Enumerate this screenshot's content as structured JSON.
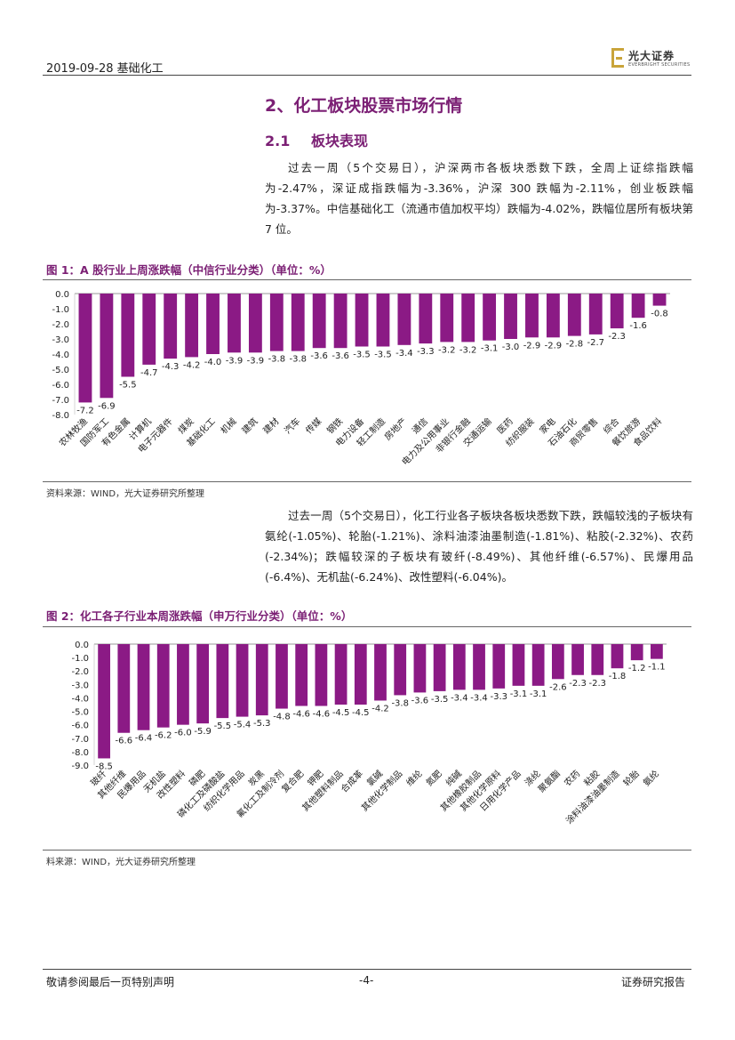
{
  "header": {
    "date_category": "2019-09-28    基础化工",
    "logo_name": "光大证券",
    "logo_sub": "EVERBRIGHT SECURITIES"
  },
  "section": {
    "title": "2、化工板块股票市场行情",
    "sub_num": "2.1",
    "sub_title": "板块表现"
  },
  "paragraph1": "过去一周（5个交易日），沪深两市各板块悉数下跌，全周上证综指跌幅为-2.47%，深证成指跌幅为-3.36%，沪深 300 跌幅为-2.11%，创业板跌幅为-3.37%。中信基础化工（流通市值加权平均）跌幅为-4.02%，跌幅位居所有板块第 7 位。",
  "figure1": {
    "title": "图 1：A 股行业上周涨跌幅（中信行业分类）（单位：%）",
    "source": "资料来源：WIND，光大证券研究所整理"
  },
  "paragraph2": "过去一周（5个交易日），化工行业各子板块各板块悉数下跌，跌幅较浅的子板块有氨纶(-1.05%)、轮胎(-1.21%)、涂料油漆油墨制造(-1.81%)、粘胶(-2.32%)、农药(-2.34%)；跌幅较深的子板块有玻纤(-8.49%)、其他纤维(-6.57%)、民爆用品(-6.4%)、无机盐(-6.24%)、改性塑料(-6.04%)。",
  "figure2": {
    "title": "图 2：化工各子行业本周涨跌幅（申万行业分类）（单位：%）",
    "source": "料来源：WIND，光大证券研究所整理"
  },
  "footer": {
    "left": "敬请参阅最后一页特别声明",
    "page": "-4-",
    "right": "证券研究报告"
  },
  "colors": {
    "bar": "#8b1a85",
    "accent": "#7b1f74"
  },
  "chart_data": [
    {
      "type": "bar",
      "title": "图 1：A 股行业上周涨跌幅（中信行业分类）（单位：%）",
      "ylim": [
        -8.0,
        0.0
      ],
      "yticks": [
        "0.0",
        "-1.0",
        "-2.0",
        "-3.0",
        "-4.0",
        "-5.0",
        "-6.0",
        "-7.0",
        "-8.0"
      ],
      "categories": [
        "农林牧渔",
        "国防军工",
        "有色金属",
        "计算机",
        "电子元器件",
        "煤炭",
        "基础化工",
        "机械",
        "建筑",
        "建材",
        "汽车",
        "传媒",
        "钢铁",
        "电力设备",
        "轻工制造",
        "房地产",
        "通信",
        "电力及公用事业",
        "非银行金融",
        "交通运输",
        "医药",
        "纺织服装",
        "家电",
        "石油石化",
        "商贸零售",
        "综合",
        "餐饮旅游",
        "食品饮料"
      ],
      "values": [
        -7.2,
        -6.9,
        -5.5,
        -4.7,
        -4.3,
        -4.2,
        -4.0,
        -3.9,
        -3.9,
        -3.8,
        -3.8,
        -3.6,
        -3.6,
        -3.5,
        -3.5,
        -3.4,
        -3.3,
        -3.2,
        -3.2,
        -3.1,
        -3.0,
        -2.9,
        -2.9,
        -2.8,
        -2.7,
        -2.3,
        -1.6,
        -0.8
      ],
      "labels": [
        "-7.2",
        "-6.9",
        "-5.5",
        "-4.7",
        "-4.3",
        "-4.2",
        "-4.0",
        "-3.9",
        "-3.9",
        "-3.8",
        "-3.8",
        "-3.6",
        "-3.6",
        "-3.5",
        "-3.5",
        "-3.4",
        "-3.3",
        "-3.2",
        "-3.2",
        "-3.1",
        "-3.0",
        "-2.9",
        "-2.9",
        "-2.8",
        "-2.7",
        "-2.3",
        "-1.6",
        "-0.8"
      ]
    },
    {
      "type": "bar",
      "title": "图 2：化工各子行业本周涨跌幅（申万行业分类）（单位：%）",
      "ylim": [
        -9.0,
        0.0
      ],
      "yticks": [
        "0.0",
        "-1.0",
        "-2.0",
        "-3.0",
        "-4.0",
        "-5.0",
        "-6.0",
        "-7.0",
        "-8.0",
        "-9.0"
      ],
      "categories": [
        "玻纤",
        "其他纤维",
        "民爆用品",
        "无机盐",
        "改性塑料",
        "磷肥",
        "磷化工及磷酸盐",
        "纺织化学用品",
        "炭黑",
        "氟化工及制冷剂",
        "复合肥",
        "钾肥",
        "其他塑料制品",
        "合成革",
        "氯碱",
        "其他化学制品",
        "维纶",
        "氮肥",
        "纯碱",
        "其他橡胶制品",
        "其他化学原料",
        "日用化学产品",
        "涤纶",
        "聚氨酯",
        "农药",
        "粘胶",
        "涂料油漆油墨制造",
        "轮胎",
        "氨纶"
      ],
      "values": [
        -8.5,
        -6.6,
        -6.4,
        -6.2,
        -6.0,
        -5.9,
        -5.5,
        -5.4,
        -5.3,
        -4.8,
        -4.6,
        -4.6,
        -4.5,
        -4.5,
        -4.2,
        -3.8,
        -3.6,
        -3.5,
        -3.4,
        -3.4,
        -3.3,
        -3.1,
        -3.1,
        -2.6,
        -2.3,
        -2.3,
        -1.8,
        -1.2,
        -1.1
      ],
      "labels": [
        "-8.5",
        "-6.6",
        "-6.4",
        "-6.2",
        "-6.0",
        "-5.9",
        "-5.5",
        "-5.4",
        "-5.3",
        "-4.8",
        "-4.6",
        "-4.6",
        "-4.5",
        "-4.5",
        "-4.2",
        "-3.8",
        "-3.6",
        "-3.5",
        "-3.4",
        "-3.4",
        "-3.3",
        "-3.1",
        "-3.1",
        "-2.6",
        "-2.3",
        "-2.3",
        "-1.8",
        "-1.2",
        "-1.1"
      ]
    }
  ]
}
